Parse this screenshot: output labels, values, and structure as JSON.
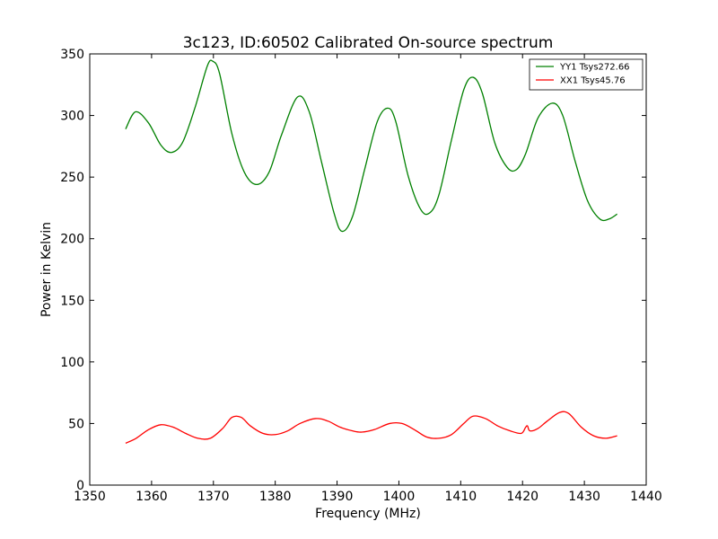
{
  "chart_data": {
    "type": "line",
    "title": "3c123, ID:60502 Calibrated On-source spectrum",
    "xlabel": "Frequency (MHz)",
    "ylabel": "Power in Kelvin",
    "xlim": [
      1350,
      1440
    ],
    "ylim": [
      0,
      350
    ],
    "xticks": [
      1350,
      1360,
      1370,
      1380,
      1390,
      1400,
      1410,
      1420,
      1430,
      1440
    ],
    "yticks": [
      0,
      50,
      100,
      150,
      200,
      250,
      300,
      350
    ],
    "grid": false,
    "legend_position": "top-right",
    "series": [
      {
        "name": "YY1 Tsys272.66",
        "color": "#008000",
        "x": [
          1355.8,
          1357.4,
          1359.5,
          1361.5,
          1363.2,
          1365.0,
          1367.0,
          1369.0,
          1369.9,
          1371.0,
          1373.0,
          1375.0,
          1377.0,
          1379.0,
          1381.0,
          1383.6,
          1385.5,
          1387.5,
          1389.5,
          1390.8,
          1392.5,
          1394.5,
          1396.5,
          1398.2,
          1399.5,
          1401.5,
          1403.5,
          1405.0,
          1406.5,
          1408.5,
          1410.5,
          1412.0,
          1413.5,
          1415.5,
          1417.5,
          1419.0,
          1420.5,
          1422.5,
          1424.8,
          1426.5,
          1428.5,
          1430.5,
          1432.5,
          1434.0,
          1435.3
        ],
        "y": [
          289,
          303,
          294,
          276,
          270,
          278,
          306,
          340,
          344,
          334,
          285,
          254,
          244,
          254,
          284,
          315,
          303,
          262,
          221,
          206,
          218,
          257,
          295,
          306,
          295,
          251,
          224,
          221,
          236,
          280,
          321,
          331,
          318,
          278,
          258,
          256,
          269,
          298,
          310,
          300,
          263,
          231,
          216,
          216,
          220
        ]
      },
      {
        "name": "XX1 Tsys45.76",
        "color": "#ff0000",
        "x": [
          1355.8,
          1357.5,
          1359.5,
          1361.5,
          1363.5,
          1365.5,
          1367.5,
          1369.5,
          1371.5,
          1373.0,
          1374.5,
          1376.0,
          1378.0,
          1380.0,
          1382.0,
          1384.0,
          1386.5,
          1388.5,
          1390.5,
          1392.5,
          1394.0,
          1396.0,
          1398.5,
          1400.5,
          1402.5,
          1404.5,
          1406.5,
          1408.5,
          1410.5,
          1412.0,
          1414.0,
          1416.0,
          1418.0,
          1419.8,
          1420.5,
          1420.8,
          1421.2,
          1422.5,
          1424.0,
          1426.0,
          1427.5,
          1429.5,
          1431.5,
          1433.5,
          1435.3
        ],
        "y": [
          34,
          38,
          45,
          49,
          47,
          42,
          38,
          38,
          46,
          55,
          55,
          48,
          42,
          41,
          44,
          50,
          54,
          52,
          47,
          44,
          43,
          45,
          50,
          50,
          45,
          39,
          38,
          41,
          50,
          56,
          54,
          48,
          44,
          42,
          47,
          48,
          44,
          46,
          52,
          59,
          58,
          47,
          40,
          38,
          40
        ]
      }
    ]
  }
}
